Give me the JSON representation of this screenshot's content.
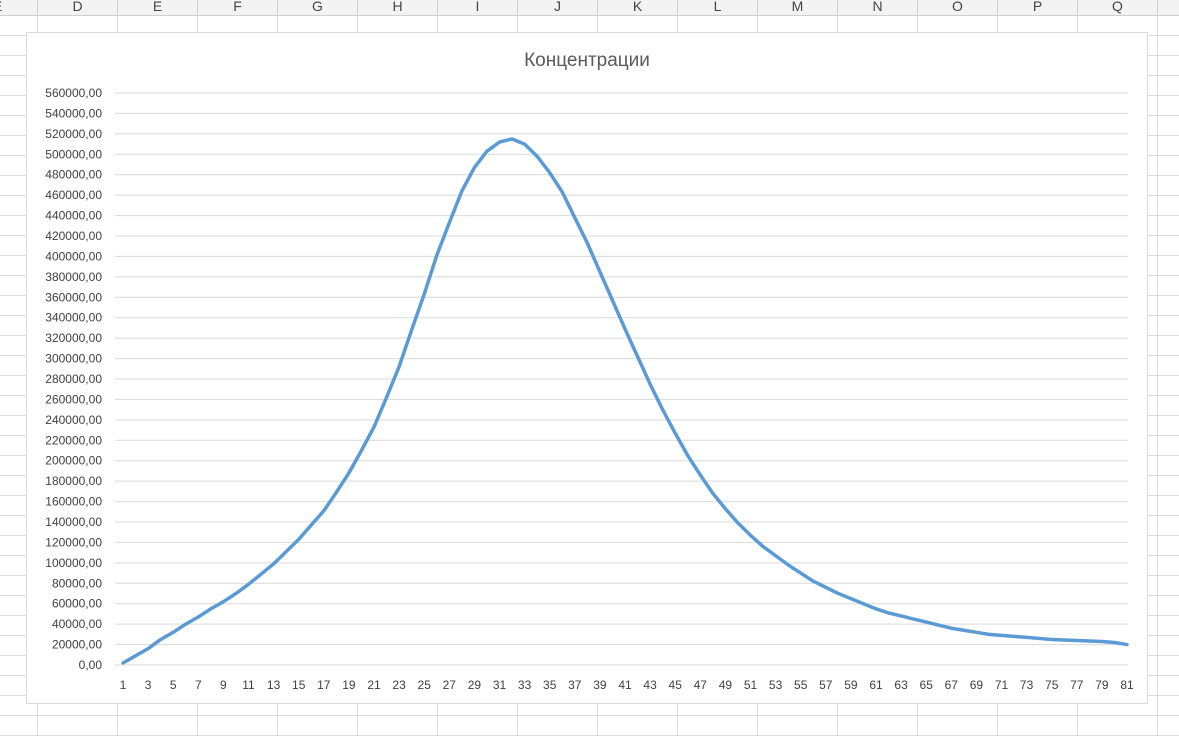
{
  "sheet": {
    "columns": [
      "E",
      "D",
      "E",
      "F",
      "G",
      "H",
      "I",
      "J",
      "K",
      "L",
      "M",
      "N",
      "O",
      "P",
      "Q"
    ]
  },
  "chart_data": {
    "type": "line",
    "title": "Концентрации",
    "xlabel": "",
    "ylabel": "",
    "ylim": [
      0,
      560000
    ],
    "ytick_step": 20000,
    "y_tick_format": "comma-2-decimals",
    "grid": true,
    "legend": "none",
    "x_tick_labels": [
      "1",
      "3",
      "5",
      "7",
      "9",
      "11",
      "13",
      "15",
      "17",
      "19",
      "21",
      "23",
      "25",
      "27",
      "29",
      "31",
      "33",
      "35",
      "37",
      "39",
      "41",
      "43",
      "45",
      "47",
      "49",
      "51",
      "53",
      "55",
      "57",
      "59",
      "61",
      "63",
      "65",
      "67",
      "69",
      "71",
      "73",
      "75",
      "77",
      "79",
      "81"
    ],
    "series": [
      {
        "color": "#5b9bd5",
        "x": [
          1,
          2,
          3,
          4,
          5,
          6,
          7,
          8,
          9,
          10,
          11,
          12,
          13,
          14,
          15,
          16,
          17,
          18,
          19,
          20,
          21,
          22,
          23,
          24,
          25,
          26,
          27,
          28,
          29,
          30,
          31,
          32,
          33,
          34,
          35,
          36,
          37,
          38,
          39,
          40,
          41,
          42,
          43,
          44,
          45,
          46,
          47,
          48,
          49,
          50,
          51,
          52,
          53,
          54,
          55,
          56,
          57,
          58,
          59,
          60,
          61,
          62,
          63,
          64,
          65,
          66,
          67,
          68,
          69,
          70,
          71,
          72,
          73,
          74,
          75,
          76,
          77,
          78,
          79,
          80,
          81
        ],
        "values": [
          2000,
          9000,
          16000,
          25000,
          32000,
          40000,
          47000,
          55000,
          62000,
          70000,
          79000,
          89000,
          99000,
          111000,
          123000,
          137000,
          151000,
          169000,
          188000,
          210000,
          233000,
          262000,
          292000,
          328000,
          363000,
          401000,
          433000,
          464000,
          487000,
          503000,
          512000,
          515000,
          510000,
          498000,
          482000,
          463000,
          438000,
          413000,
          385000,
          357000,
          329000,
          302000,
          275000,
          250000,
          227000,
          205000,
          186000,
          168000,
          153000,
          139000,
          127000,
          116000,
          107000,
          98000,
          90000,
          82000,
          76000,
          70000,
          65000,
          60000,
          55000,
          51000,
          48000,
          45000,
          42000,
          39000,
          36000,
          34000,
          32000,
          30000,
          29000,
          28000,
          27000,
          26000,
          25000,
          24500,
          24000,
          23500,
          23000,
          22000,
          20000
        ]
      }
    ]
  }
}
